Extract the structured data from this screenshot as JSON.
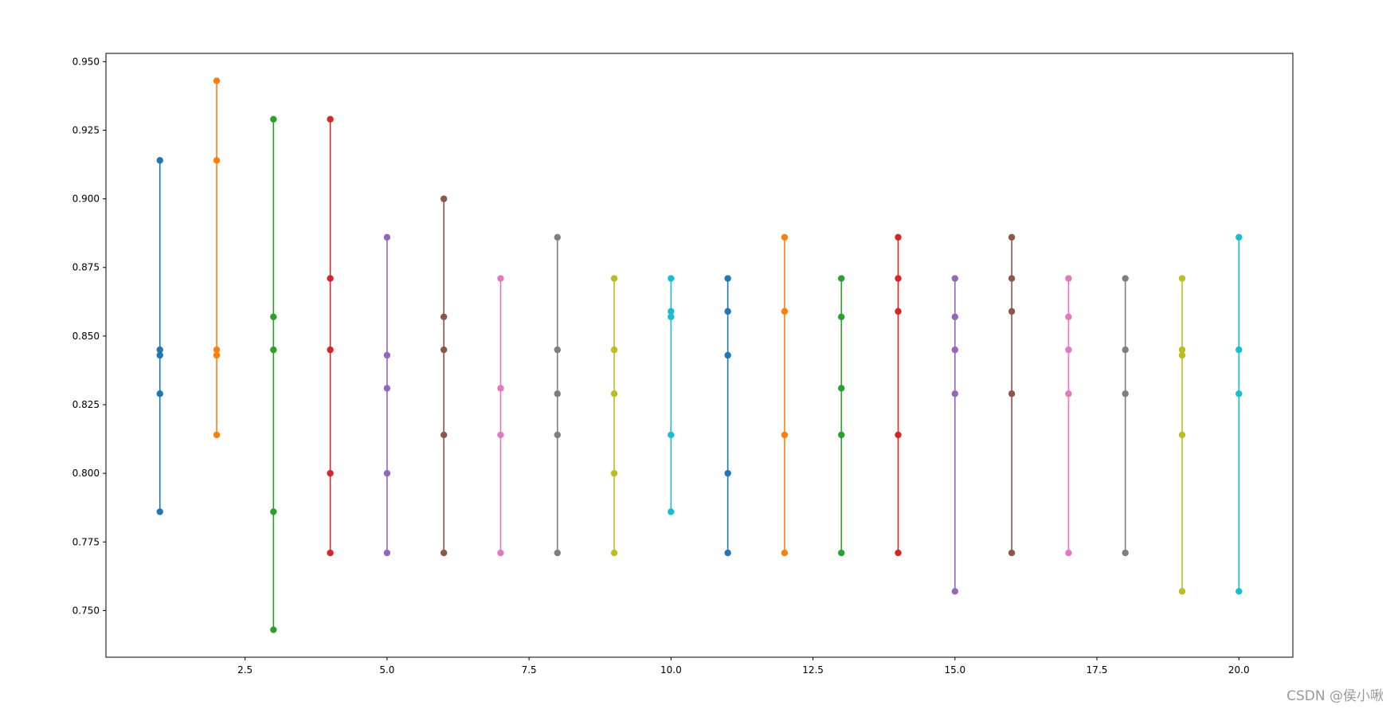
{
  "chart_data": {
    "type": "scatter",
    "title": "",
    "xlabel": "",
    "ylabel": "",
    "xlim": [
      0.05,
      20.95
    ],
    "ylim": [
      0.733,
      0.953
    ],
    "grid": false,
    "x_ticks": [
      "2.5",
      "5.0",
      "7.5",
      "10.0",
      "12.5",
      "15.0",
      "17.5",
      "20.0"
    ],
    "x_tick_values": [
      2.5,
      5.0,
      7.5,
      10.0,
      12.5,
      15.0,
      17.5,
      20.0
    ],
    "y_ticks": [
      "0.750",
      "0.775",
      "0.800",
      "0.825",
      "0.850",
      "0.875",
      "0.900",
      "0.925",
      "0.950"
    ],
    "y_tick_values": [
      0.75,
      0.775,
      0.8,
      0.825,
      0.85,
      0.875,
      0.9,
      0.925,
      0.95
    ],
    "series": [
      {
        "x": 1,
        "values": [
          0.914,
          0.845,
          0.843,
          0.829,
          0.786
        ],
        "color": "#1f77b4"
      },
      {
        "x": 2,
        "values": [
          0.943,
          0.914,
          0.845,
          0.843,
          0.814
        ],
        "color": "#ff7f0e"
      },
      {
        "x": 3,
        "values": [
          0.929,
          0.857,
          0.845,
          0.786,
          0.743
        ],
        "color": "#2ca02c"
      },
      {
        "x": 4,
        "values": [
          0.929,
          0.871,
          0.845,
          0.8,
          0.771
        ],
        "color": "#d62728"
      },
      {
        "x": 5,
        "values": [
          0.886,
          0.843,
          0.831,
          0.8,
          0.771
        ],
        "color": "#9467bd"
      },
      {
        "x": 6,
        "values": [
          0.9,
          0.857,
          0.845,
          0.814,
          0.771
        ],
        "color": "#8c564b"
      },
      {
        "x": 7,
        "values": [
          0.871,
          0.831,
          0.814,
          0.771
        ],
        "color": "#e377c2"
      },
      {
        "x": 8,
        "values": [
          0.886,
          0.845,
          0.829,
          0.814,
          0.771
        ],
        "color": "#7f7f7f"
      },
      {
        "x": 9,
        "values": [
          0.871,
          0.845,
          0.829,
          0.8,
          0.771
        ],
        "color": "#bcbd22"
      },
      {
        "x": 10,
        "values": [
          0.871,
          0.859,
          0.857,
          0.814,
          0.786
        ],
        "color": "#17becf"
      },
      {
        "x": 11,
        "values": [
          0.871,
          0.859,
          0.843,
          0.8,
          0.771
        ],
        "color": "#1f77b4"
      },
      {
        "x": 12,
        "values": [
          0.886,
          0.859,
          0.814,
          0.771
        ],
        "color": "#ff7f0e"
      },
      {
        "x": 13,
        "values": [
          0.871,
          0.857,
          0.831,
          0.814,
          0.771
        ],
        "color": "#2ca02c"
      },
      {
        "x": 14,
        "values": [
          0.886,
          0.871,
          0.859,
          0.814,
          0.771
        ],
        "color": "#d62728"
      },
      {
        "x": 15,
        "values": [
          0.871,
          0.857,
          0.845,
          0.829,
          0.757
        ],
        "color": "#9467bd"
      },
      {
        "x": 16,
        "values": [
          0.886,
          0.871,
          0.859,
          0.829,
          0.771
        ],
        "color": "#8c564b"
      },
      {
        "x": 17,
        "values": [
          0.871,
          0.857,
          0.845,
          0.829,
          0.771
        ],
        "color": "#e377c2"
      },
      {
        "x": 18,
        "values": [
          0.871,
          0.845,
          0.829,
          0.771
        ],
        "color": "#7f7f7f"
      },
      {
        "x": 19,
        "values": [
          0.871,
          0.845,
          0.843,
          0.814,
          0.757
        ],
        "color": "#bcbd22"
      },
      {
        "x": 20,
        "values": [
          0.886,
          0.845,
          0.829,
          0.757
        ],
        "color": "#17becf"
      }
    ]
  },
  "watermark": "CSDN @侯小啾"
}
